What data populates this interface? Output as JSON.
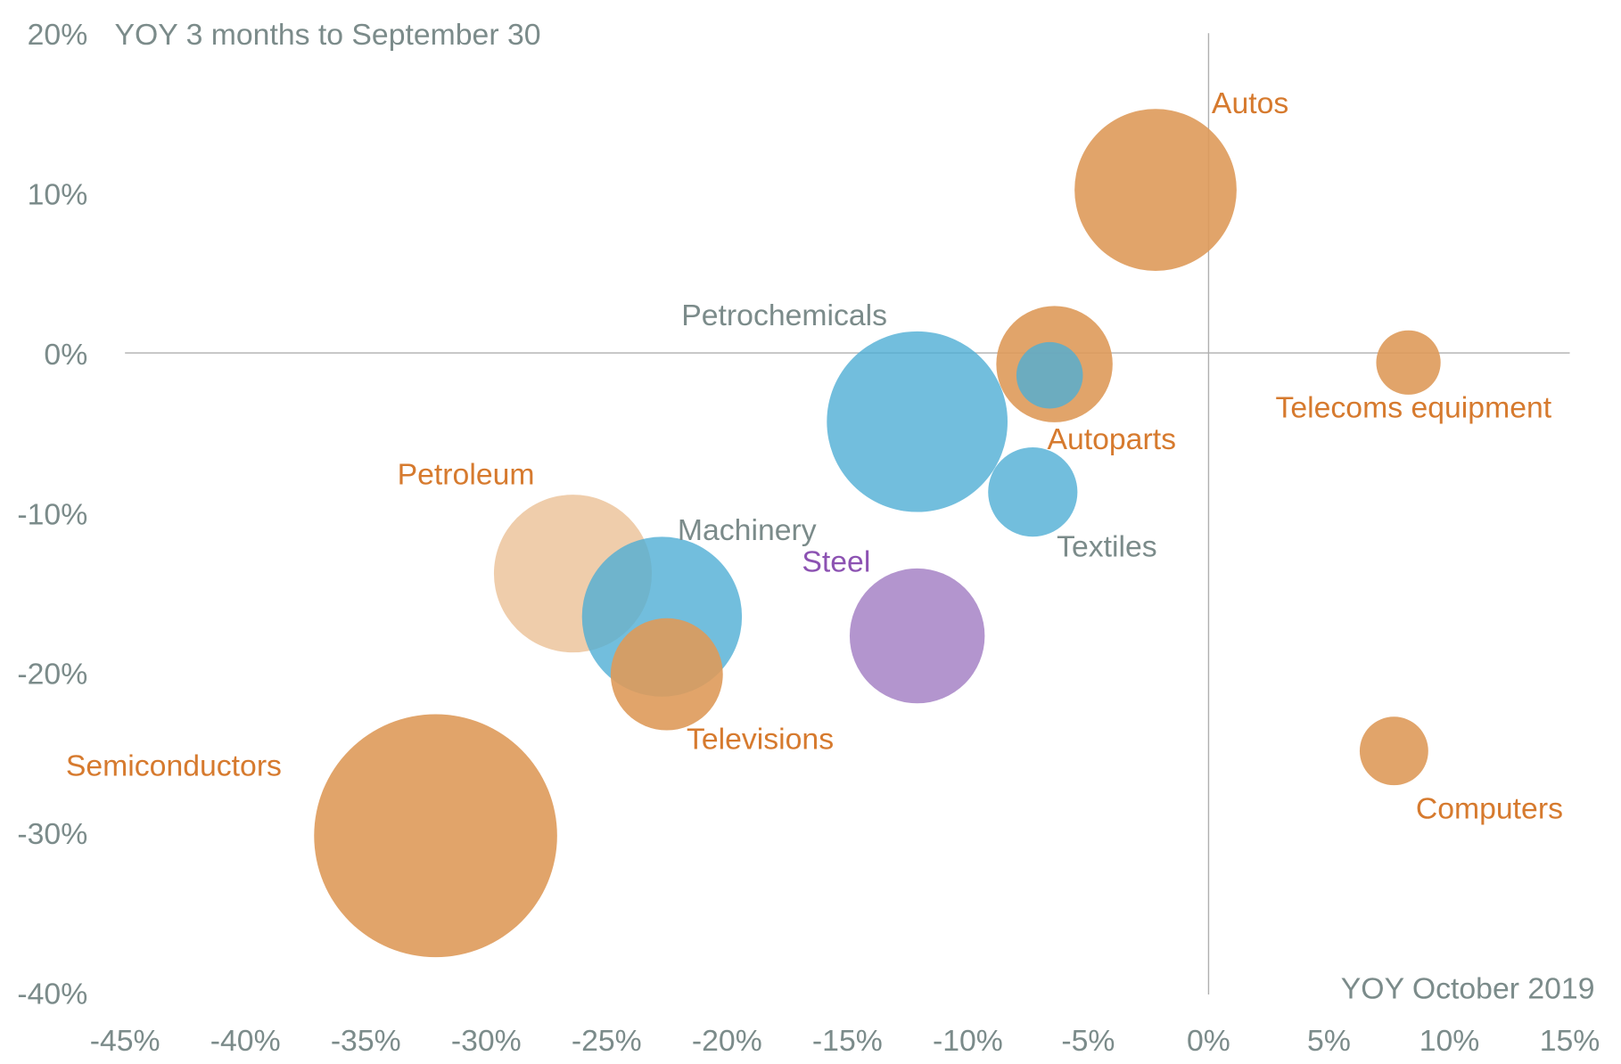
{
  "chart_data": {
    "type": "bubble",
    "title": "",
    "ylabel": "YOY 3 months to September 30",
    "xlabel": "YOY October 2019",
    "xlim": [
      -45,
      15
    ],
    "ylim": [
      -40,
      20
    ],
    "xticks": [
      "-45%",
      "-40%",
      "-35%",
      "-30%",
      "-25%",
      "-20%",
      "-15%",
      "-10%",
      "-5%",
      "0%",
      "5%",
      "10%",
      "15%"
    ],
    "xtick_values": [
      -45,
      -40,
      -35,
      -30,
      -25,
      -20,
      -15,
      -10,
      -5,
      0,
      5,
      10,
      15
    ],
    "yticks": [
      "20%",
      "10%",
      "0%",
      "-10%",
      "-20%",
      "-30%",
      "-40%"
    ],
    "ytick_values": [
      20,
      10,
      0,
      -10,
      -20,
      -30,
      -40
    ],
    "grid": false,
    "colors": {
      "orange": "#DE9A5A",
      "blue": "#4FAED5",
      "purple": "#A683C6",
      "peach": "#EDC8A2",
      "orange_text": "#D67A2E",
      "gray_text": "#7B8B8A",
      "purple_text": "#8C52B2",
      "axis": "#AFAFAF"
    },
    "points": [
      {
        "name": "Semiconductors",
        "x": -32.1,
        "y": -30.2,
        "size": 117,
        "color": "orange",
        "label_color": "orange_text"
      },
      {
        "name": "Petroleum",
        "x": -26.4,
        "y": -13.8,
        "size": 76,
        "color": "peach",
        "label_color": "orange_text"
      },
      {
        "name": "Machinery",
        "x": -22.7,
        "y": -16.5,
        "size": 77,
        "color": "blue",
        "label_color": "gray_text"
      },
      {
        "name": "Televisions",
        "x": -22.5,
        "y": -20.1,
        "size": 54,
        "color": "orange",
        "label_color": "orange_text"
      },
      {
        "name": "Steel",
        "x": -12.1,
        "y": -17.7,
        "size": 65,
        "color": "purple",
        "label_color": "purple_text"
      },
      {
        "name": "Petrochemicals",
        "x": -12.1,
        "y": -4.3,
        "size": 87,
        "color": "blue",
        "label_color": "gray_text"
      },
      {
        "name": "Textiles",
        "x": -7.3,
        "y": -8.7,
        "size": 43,
        "color": "blue",
        "label_color": "gray_text"
      },
      {
        "name": "Autoparts",
        "x": -6.4,
        "y": -0.7,
        "size": 56,
        "color": "orange",
        "label_color": "orange_text"
      },
      {
        "name": "",
        "x": -6.6,
        "y": -1.4,
        "size": 32,
        "color": "blue",
        "label_color": "gray_text"
      },
      {
        "name": "Autos",
        "x": -2.2,
        "y": 10.2,
        "size": 78,
        "color": "orange",
        "label_color": "orange_text"
      },
      {
        "name": "Telecoms equipment",
        "x": 8.3,
        "y": -0.6,
        "size": 31,
        "color": "orange",
        "label_color": "orange_text"
      },
      {
        "name": "Computers",
        "x": 7.7,
        "y": -24.9,
        "size": 33,
        "color": "orange",
        "label_color": "orange_text"
      }
    ]
  }
}
